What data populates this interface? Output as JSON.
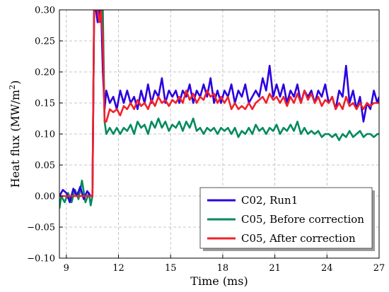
{
  "chart_data": {
    "type": "line",
    "title": "",
    "xlabel": "Time (ms)",
    "ylabel": "Heat flux (MW/m",
    "ylabel_sup": "2",
    "ylabel_end": ")",
    "xlim": [
      8.6,
      27
    ],
    "ylim": [
      -0.1,
      0.3
    ],
    "x_ticks": [
      9,
      12,
      15,
      18,
      21,
      24,
      27
    ],
    "x_tick_labels": [
      "9",
      "12",
      "15",
      "18",
      "21",
      "24",
      "27"
    ],
    "y_ticks": [
      -0.1,
      -0.05,
      0.0,
      0.05,
      0.1,
      0.15,
      0.2,
      0.25,
      0.3
    ],
    "y_tick_labels": [
      "−0.10",
      "−0.05",
      "0.00",
      "0.05",
      "0.10",
      "0.15",
      "0.20",
      "0.25",
      "0.30"
    ],
    "grid": true,
    "legend_position": "bottom-right",
    "series": [
      {
        "name": "C02, Run1",
        "color": "#2b00e0",
        "points": [
          [
            8.6,
            0.0
          ],
          [
            8.8,
            0.01
          ],
          [
            9.0,
            0.005
          ],
          [
            9.2,
            -0.01
          ],
          [
            9.4,
            0.012
          ],
          [
            9.6,
            0.0
          ],
          [
            9.8,
            0.015
          ],
          [
            10.0,
            -0.005
          ],
          [
            10.2,
            0.008
          ],
          [
            10.4,
            0.0
          ],
          [
            10.5,
            0.0
          ],
          [
            10.6,
            0.3
          ],
          [
            10.7,
            0.3
          ],
          [
            10.8,
            0.28
          ],
          [
            10.9,
            0.3
          ],
          [
            11.0,
            0.3
          ],
          [
            11.1,
            0.2
          ],
          [
            11.2,
            0.14
          ],
          [
            11.3,
            0.17
          ],
          [
            11.5,
            0.15
          ],
          [
            11.7,
            0.16
          ],
          [
            11.9,
            0.14
          ],
          [
            12.1,
            0.17
          ],
          [
            12.3,
            0.15
          ],
          [
            12.5,
            0.17
          ],
          [
            12.7,
            0.15
          ],
          [
            12.9,
            0.16
          ],
          [
            13.1,
            0.14
          ],
          [
            13.3,
            0.17
          ],
          [
            13.5,
            0.15
          ],
          [
            13.7,
            0.18
          ],
          [
            13.9,
            0.15
          ],
          [
            14.1,
            0.17
          ],
          [
            14.3,
            0.16
          ],
          [
            14.5,
            0.19
          ],
          [
            14.7,
            0.15
          ],
          [
            14.9,
            0.17
          ],
          [
            15.1,
            0.16
          ],
          [
            15.3,
            0.17
          ],
          [
            15.5,
            0.15
          ],
          [
            15.7,
            0.17
          ],
          [
            15.9,
            0.16
          ],
          [
            16.1,
            0.18
          ],
          [
            16.3,
            0.15
          ],
          [
            16.5,
            0.17
          ],
          [
            16.7,
            0.16
          ],
          [
            16.9,
            0.18
          ],
          [
            17.1,
            0.16
          ],
          [
            17.3,
            0.19
          ],
          [
            17.5,
            0.15
          ],
          [
            17.7,
            0.17
          ],
          [
            17.9,
            0.15
          ],
          [
            18.1,
            0.17
          ],
          [
            18.3,
            0.16
          ],
          [
            18.5,
            0.18
          ],
          [
            18.7,
            0.15
          ],
          [
            18.9,
            0.17
          ],
          [
            19.1,
            0.16
          ],
          [
            19.3,
            0.18
          ],
          [
            19.5,
            0.15
          ],
          [
            19.7,
            0.16
          ],
          [
            19.9,
            0.17
          ],
          [
            20.1,
            0.16
          ],
          [
            20.3,
            0.19
          ],
          [
            20.5,
            0.17
          ],
          [
            20.7,
            0.21
          ],
          [
            20.9,
            0.16
          ],
          [
            21.1,
            0.18
          ],
          [
            21.3,
            0.16
          ],
          [
            21.5,
            0.18
          ],
          [
            21.7,
            0.15
          ],
          [
            21.9,
            0.17
          ],
          [
            22.1,
            0.16
          ],
          [
            22.3,
            0.18
          ],
          [
            22.5,
            0.15
          ],
          [
            22.7,
            0.17
          ],
          [
            22.9,
            0.16
          ],
          [
            23.1,
            0.17
          ],
          [
            23.3,
            0.15
          ],
          [
            23.5,
            0.17
          ],
          [
            23.7,
            0.16
          ],
          [
            23.9,
            0.18
          ],
          [
            24.1,
            0.15
          ],
          [
            24.3,
            0.16
          ],
          [
            24.5,
            0.14
          ],
          [
            24.7,
            0.17
          ],
          [
            24.9,
            0.16
          ],
          [
            25.1,
            0.21
          ],
          [
            25.3,
            0.15
          ],
          [
            25.5,
            0.17
          ],
          [
            25.7,
            0.14
          ],
          [
            25.9,
            0.16
          ],
          [
            26.1,
            0.12
          ],
          [
            26.3,
            0.15
          ],
          [
            26.5,
            0.14
          ],
          [
            26.7,
            0.17
          ],
          [
            26.9,
            0.15
          ],
          [
            27.0,
            0.16
          ]
        ]
      },
      {
        "name": "C05, Before correction",
        "color": "#008a5e",
        "points": [
          [
            8.6,
            -0.02
          ],
          [
            8.7,
            0.0
          ],
          [
            8.9,
            -0.01
          ],
          [
            9.1,
            0.005
          ],
          [
            9.3,
            -0.01
          ],
          [
            9.5,
            0.01
          ],
          [
            9.7,
            -0.005
          ],
          [
            9.9,
            0.025
          ],
          [
            10.1,
            -0.01
          ],
          [
            10.3,
            0.005
          ],
          [
            10.4,
            -0.015
          ],
          [
            10.5,
            0.0
          ],
          [
            10.6,
            0.3
          ],
          [
            10.7,
            0.3
          ],
          [
            10.8,
            0.3
          ],
          [
            10.9,
            0.3
          ],
          [
            11.0,
            0.28
          ],
          [
            11.1,
            0.3
          ],
          [
            11.2,
            0.12
          ],
          [
            11.3,
            0.1
          ],
          [
            11.5,
            0.11
          ],
          [
            11.7,
            0.1
          ],
          [
            11.9,
            0.11
          ],
          [
            12.1,
            0.1
          ],
          [
            12.3,
            0.11
          ],
          [
            12.5,
            0.105
          ],
          [
            12.7,
            0.115
          ],
          [
            12.9,
            0.1
          ],
          [
            13.1,
            0.12
          ],
          [
            13.3,
            0.11
          ],
          [
            13.5,
            0.115
          ],
          [
            13.7,
            0.1
          ],
          [
            13.9,
            0.12
          ],
          [
            14.1,
            0.11
          ],
          [
            14.3,
            0.125
          ],
          [
            14.5,
            0.11
          ],
          [
            14.7,
            0.12
          ],
          [
            14.9,
            0.105
          ],
          [
            15.1,
            0.115
          ],
          [
            15.3,
            0.11
          ],
          [
            15.5,
            0.12
          ],
          [
            15.7,
            0.105
          ],
          [
            15.9,
            0.12
          ],
          [
            16.1,
            0.11
          ],
          [
            16.3,
            0.125
          ],
          [
            16.5,
            0.105
          ],
          [
            16.7,
            0.11
          ],
          [
            16.9,
            0.1
          ],
          [
            17.1,
            0.11
          ],
          [
            17.3,
            0.105
          ],
          [
            17.5,
            0.11
          ],
          [
            17.7,
            0.1
          ],
          [
            17.9,
            0.11
          ],
          [
            18.1,
            0.105
          ],
          [
            18.3,
            0.11
          ],
          [
            18.5,
            0.1
          ],
          [
            18.7,
            0.11
          ],
          [
            18.9,
            0.095
          ],
          [
            19.1,
            0.105
          ],
          [
            19.3,
            0.1
          ],
          [
            19.5,
            0.11
          ],
          [
            19.7,
            0.1
          ],
          [
            19.9,
            0.115
          ],
          [
            20.1,
            0.105
          ],
          [
            20.3,
            0.11
          ],
          [
            20.5,
            0.1
          ],
          [
            20.7,
            0.11
          ],
          [
            20.9,
            0.105
          ],
          [
            21.1,
            0.115
          ],
          [
            21.3,
            0.1
          ],
          [
            21.5,
            0.11
          ],
          [
            21.7,
            0.105
          ],
          [
            21.9,
            0.115
          ],
          [
            22.1,
            0.105
          ],
          [
            22.3,
            0.12
          ],
          [
            22.5,
            0.1
          ],
          [
            22.7,
            0.11
          ],
          [
            22.9,
            0.1
          ],
          [
            23.1,
            0.105
          ],
          [
            23.3,
            0.1
          ],
          [
            23.5,
            0.105
          ],
          [
            23.7,
            0.095
          ],
          [
            23.9,
            0.1
          ],
          [
            24.1,
            0.1
          ],
          [
            24.3,
            0.095
          ],
          [
            24.5,
            0.1
          ],
          [
            24.7,
            0.09
          ],
          [
            24.9,
            0.1
          ],
          [
            25.1,
            0.095
          ],
          [
            25.3,
            0.105
          ],
          [
            25.5,
            0.095
          ],
          [
            25.7,
            0.1
          ],
          [
            25.9,
            0.105
          ],
          [
            26.1,
            0.095
          ],
          [
            26.3,
            0.1
          ],
          [
            26.5,
            0.1
          ],
          [
            26.7,
            0.095
          ],
          [
            26.9,
            0.1
          ],
          [
            27.0,
            0.1
          ]
        ]
      },
      {
        "name": "C05, After correction",
        "color": "#f0212b",
        "points": [
          [
            8.6,
            0.0
          ],
          [
            9.0,
            0.0
          ],
          [
            9.5,
            0.0
          ],
          [
            10.0,
            0.0
          ],
          [
            10.5,
            0.0
          ],
          [
            10.6,
            0.3
          ],
          [
            10.7,
            0.3
          ],
          [
            10.8,
            0.3
          ],
          [
            10.9,
            0.28
          ],
          [
            11.0,
            0.3
          ],
          [
            11.1,
            0.25
          ],
          [
            11.2,
            0.12
          ],
          [
            11.3,
            0.12
          ],
          [
            11.5,
            0.14
          ],
          [
            11.7,
            0.135
          ],
          [
            11.9,
            0.14
          ],
          [
            12.1,
            0.13
          ],
          [
            12.3,
            0.145
          ],
          [
            12.5,
            0.14
          ],
          [
            12.7,
            0.15
          ],
          [
            12.9,
            0.14
          ],
          [
            13.1,
            0.155
          ],
          [
            13.3,
            0.145
          ],
          [
            13.5,
            0.15
          ],
          [
            13.7,
            0.14
          ],
          [
            13.9,
            0.155
          ],
          [
            14.1,
            0.145
          ],
          [
            14.3,
            0.16
          ],
          [
            14.5,
            0.15
          ],
          [
            14.7,
            0.155
          ],
          [
            14.9,
            0.145
          ],
          [
            15.1,
            0.155
          ],
          [
            15.3,
            0.15
          ],
          [
            15.5,
            0.16
          ],
          [
            15.7,
            0.15
          ],
          [
            15.9,
            0.17
          ],
          [
            16.1,
            0.155
          ],
          [
            16.3,
            0.165
          ],
          [
            16.5,
            0.15
          ],
          [
            16.7,
            0.16
          ],
          [
            16.9,
            0.155
          ],
          [
            17.1,
            0.17
          ],
          [
            17.3,
            0.16
          ],
          [
            17.5,
            0.165
          ],
          [
            17.7,
            0.15
          ],
          [
            17.9,
            0.16
          ],
          [
            18.1,
            0.15
          ],
          [
            18.3,
            0.16
          ],
          [
            18.5,
            0.14
          ],
          [
            18.7,
            0.15
          ],
          [
            18.9,
            0.14
          ],
          [
            19.1,
            0.145
          ],
          [
            19.3,
            0.14
          ],
          [
            19.5,
            0.15
          ],
          [
            19.7,
            0.14
          ],
          [
            19.9,
            0.15
          ],
          [
            20.1,
            0.155
          ],
          [
            20.3,
            0.16
          ],
          [
            20.5,
            0.15
          ],
          [
            20.7,
            0.165
          ],
          [
            20.9,
            0.155
          ],
          [
            21.1,
            0.16
          ],
          [
            21.3,
            0.15
          ],
          [
            21.5,
            0.16
          ],
          [
            21.7,
            0.145
          ],
          [
            21.9,
            0.16
          ],
          [
            22.1,
            0.15
          ],
          [
            22.3,
            0.165
          ],
          [
            22.5,
            0.15
          ],
          [
            22.7,
            0.17
          ],
          [
            22.9,
            0.155
          ],
          [
            23.1,
            0.165
          ],
          [
            23.3,
            0.15
          ],
          [
            23.5,
            0.16
          ],
          [
            23.7,
            0.145
          ],
          [
            23.9,
            0.155
          ],
          [
            24.1,
            0.15
          ],
          [
            24.3,
            0.16
          ],
          [
            24.5,
            0.14
          ],
          [
            24.7,
            0.15
          ],
          [
            24.9,
            0.14
          ],
          [
            25.1,
            0.16
          ],
          [
            25.3,
            0.145
          ],
          [
            25.5,
            0.15
          ],
          [
            25.7,
            0.14
          ],
          [
            25.9,
            0.15
          ],
          [
            26.1,
            0.14
          ],
          [
            26.3,
            0.15
          ],
          [
            26.5,
            0.145
          ],
          [
            26.7,
            0.15
          ],
          [
            27.0,
            0.15
          ]
        ]
      }
    ]
  }
}
